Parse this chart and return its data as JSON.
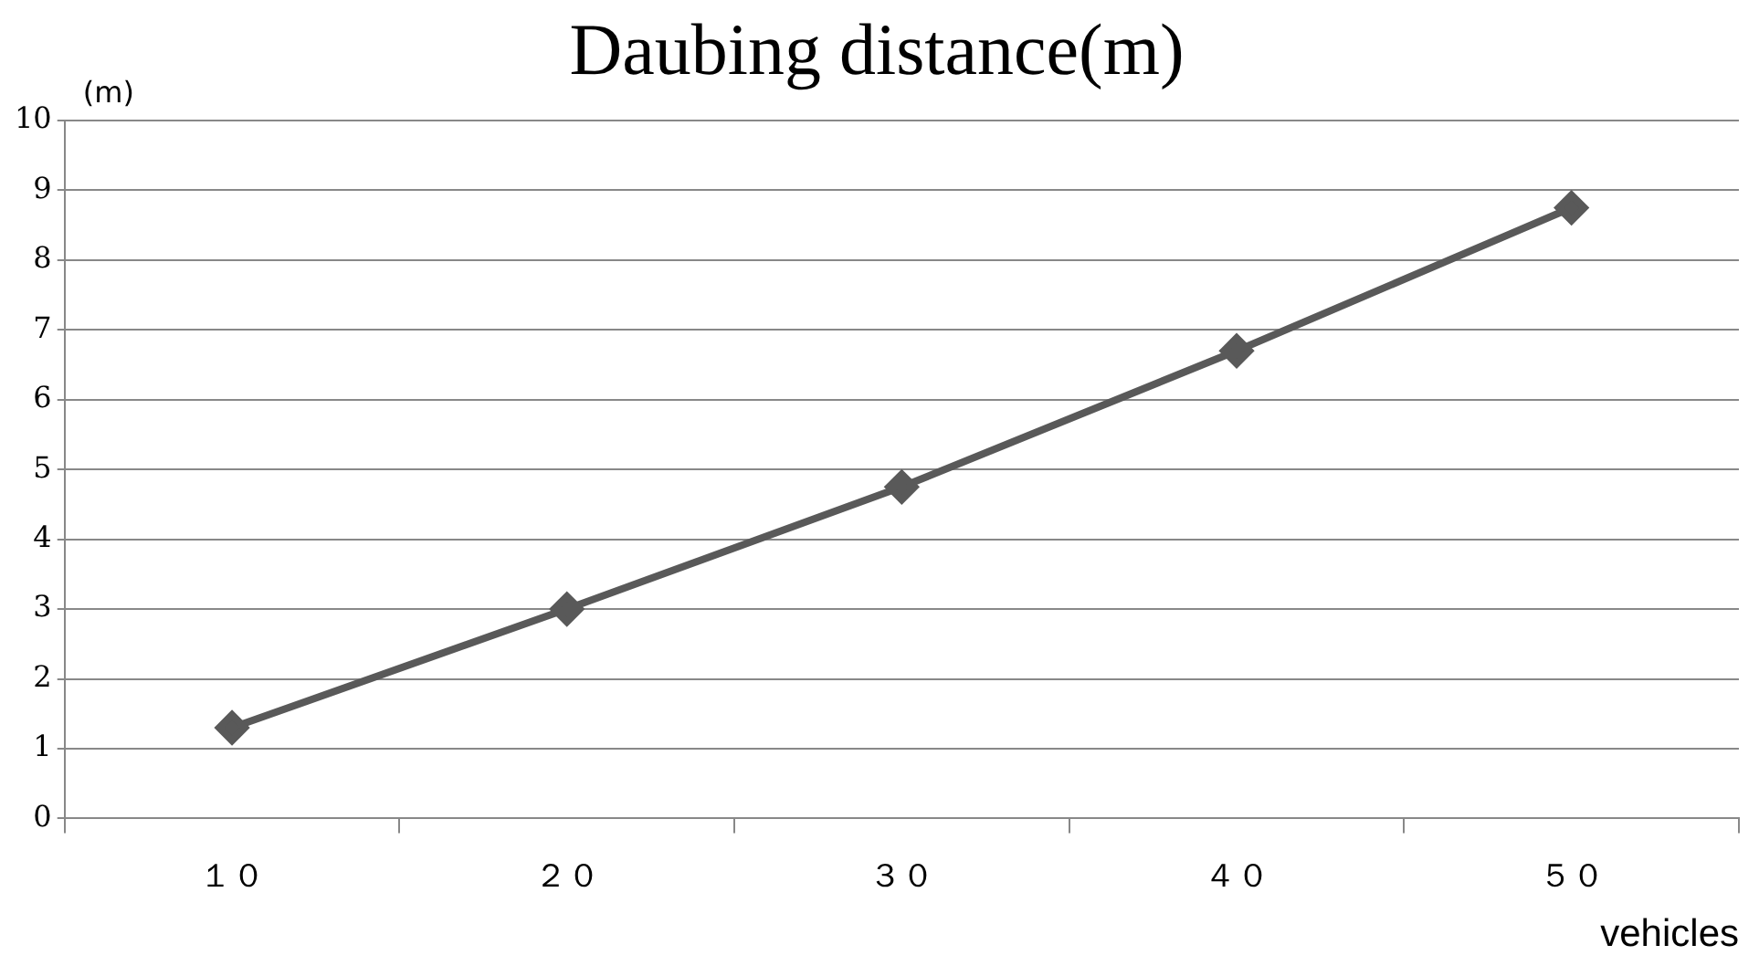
{
  "chart_data": {
    "type": "line",
    "title": "Daubing distance(m)",
    "ylabel": "(m)",
    "xlabel": "vehicles",
    "categories": [
      "１０",
      "２０",
      "３０",
      "４０",
      "５０"
    ],
    "series": [
      {
        "color": "#595959",
        "values": [
          1.3,
          3.0,
          4.75,
          6.7,
          8.75
        ]
      }
    ],
    "ylim": [
      0,
      10
    ],
    "yticks": [
      0,
      1,
      2,
      3,
      4,
      5,
      6,
      7,
      8,
      9,
      10
    ],
    "grid": "y",
    "legend": false,
    "marker": "diamond",
    "line_style": "solid"
  }
}
